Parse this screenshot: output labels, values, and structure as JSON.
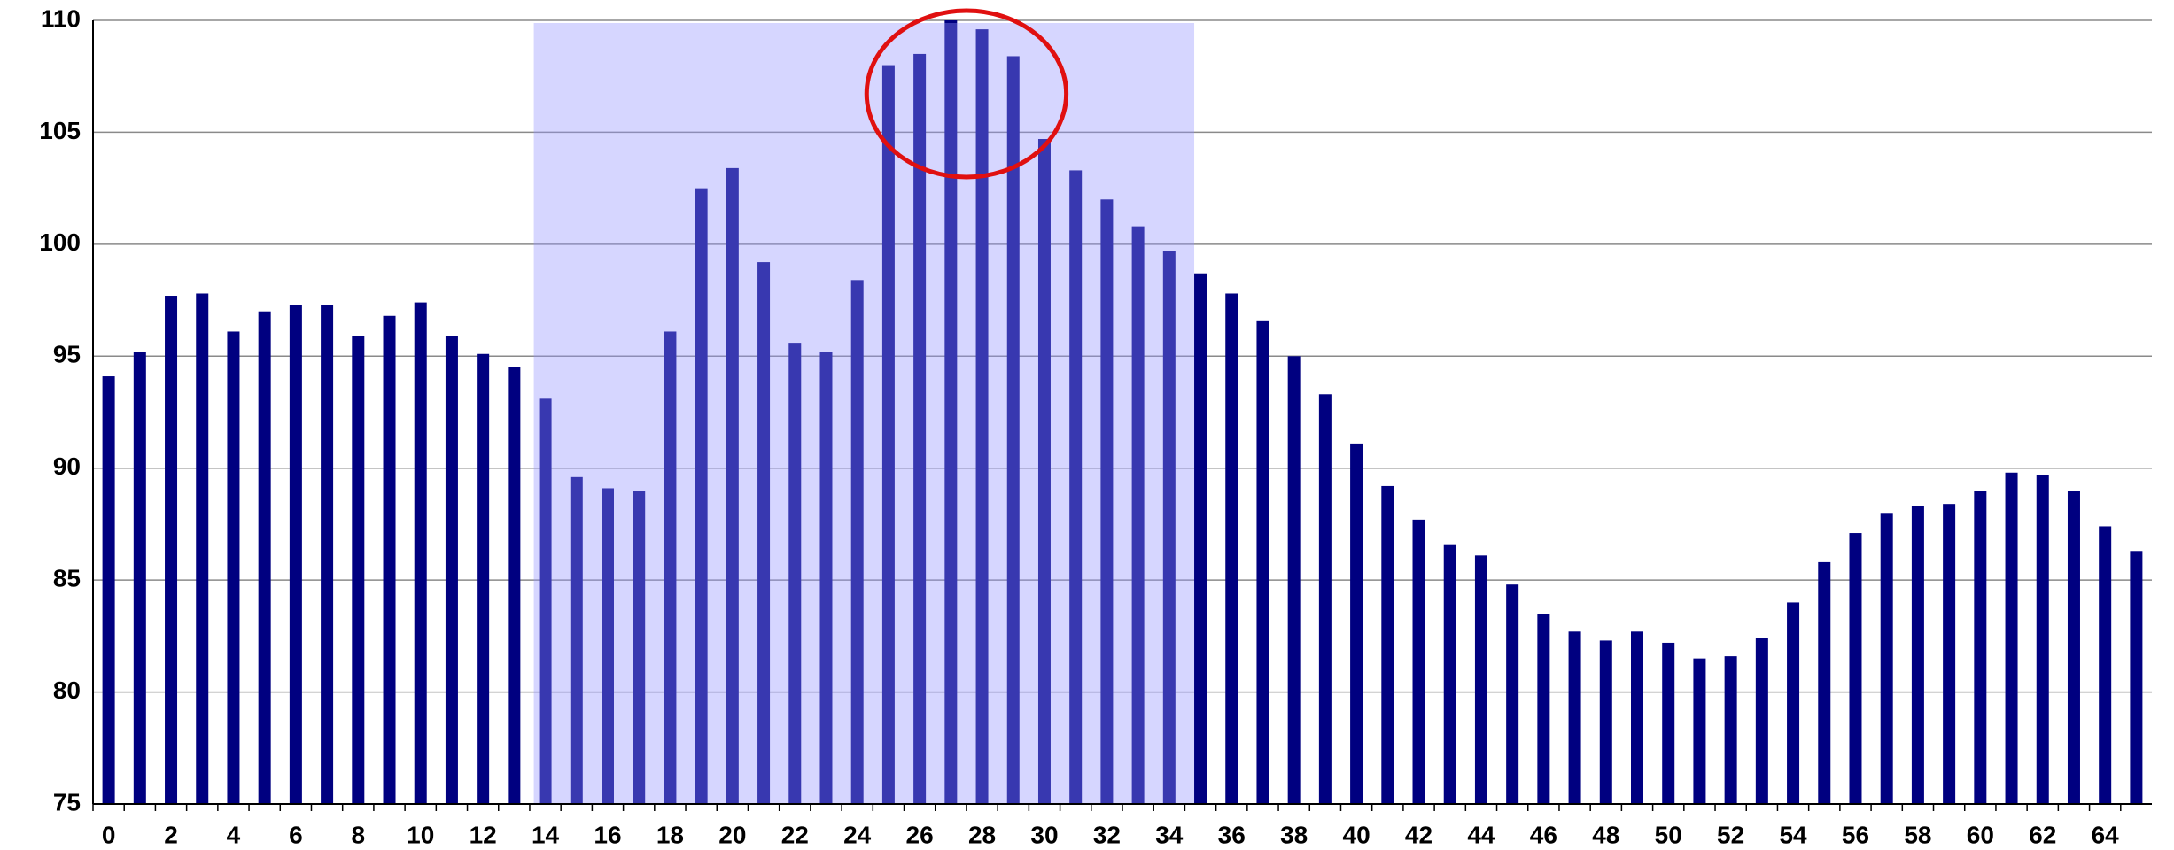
{
  "chart_data": {
    "type": "bar",
    "categories": [
      0,
      null,
      2,
      null,
      4,
      null,
      6,
      null,
      8,
      null,
      10,
      null,
      12,
      null,
      14,
      null,
      16,
      null,
      18,
      null,
      20,
      null,
      22,
      null,
      24,
      null,
      26,
      null,
      28,
      null,
      30,
      null,
      32,
      null,
      34,
      null,
      36,
      null,
      38,
      null,
      40,
      null,
      42,
      null,
      44,
      null,
      46,
      null,
      48,
      null,
      50,
      null,
      52,
      null,
      54,
      null,
      56,
      null,
      58,
      null,
      60,
      null,
      62,
      null,
      64,
      null
    ],
    "values": [
      94.1,
      95.2,
      97.7,
      97.8,
      96.1,
      97.0,
      97.3,
      97.3,
      95.9,
      96.8,
      97.4,
      95.9,
      95.1,
      94.5,
      93.1,
      89.6,
      89.1,
      89.0,
      96.1,
      102.5,
      103.4,
      99.2,
      95.6,
      95.2,
      98.4,
      108.0,
      108.5,
      110.0,
      109.6,
      108.4,
      104.7,
      103.3,
      102.0,
      100.8,
      99.7,
      98.7,
      97.8,
      96.6,
      95.0,
      93.3,
      91.1,
      89.2,
      87.7,
      86.6,
      86.1,
      84.8,
      83.5,
      82.7,
      82.3,
      82.7,
      82.2,
      81.5,
      81.6,
      82.4,
      84.0,
      85.8,
      87.1,
      88.0,
      88.3,
      88.4,
      89.0,
      89.8,
      89.7,
      89.0,
      87.4,
      86.3
    ],
    "color": "#000080",
    "ylim": [
      75,
      110
    ],
    "yticks": [
      75,
      80,
      85,
      90,
      95,
      100,
      105,
      110
    ],
    "grid": true,
    "shaded_span": [
      14,
      35
    ],
    "shade_color": "#9393ff",
    "circled_span": [
      25,
      29
    ],
    "circle_color": "#e01010"
  }
}
